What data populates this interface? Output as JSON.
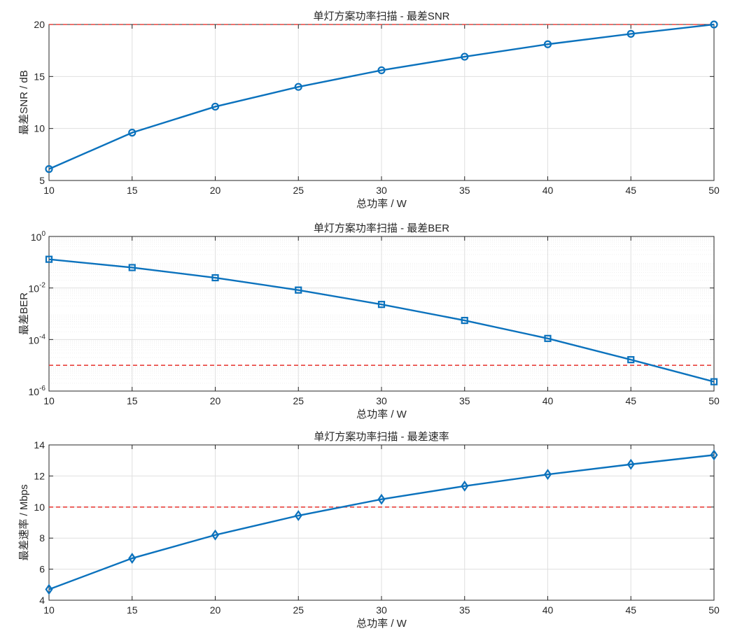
{
  "chart_data": [
    {
      "type": "line",
      "title": "单灯方案功率扫描 - 最差SNR",
      "xlabel": "总功率 / W",
      "ylabel": "最差SNR / dB",
      "xlim": [
        10,
        50
      ],
      "ylim": [
        5,
        20
      ],
      "xticks": [
        10,
        15,
        20,
        25,
        30,
        35,
        40,
        45,
        50
      ],
      "yticks": [
        5,
        10,
        15,
        20
      ],
      "yscale": "linear",
      "grid": true,
      "marker": "circle",
      "color": "#0b72bd",
      "threshold": 20,
      "threshold_color": "#e8413c",
      "x": [
        10,
        15,
        20,
        25,
        30,
        35,
        40,
        45,
        50
      ],
      "y": [
        6.1,
        9.6,
        12.1,
        14.0,
        15.6,
        16.9,
        18.1,
        19.1,
        20.0
      ]
    },
    {
      "type": "line",
      "title": "单灯方案功率扫描 - 最差BER",
      "xlabel": "总功率 / W",
      "ylabel": "最差BER",
      "xlim": [
        10,
        50
      ],
      "ylim": [
        1e-06,
        1
      ],
      "xticks": [
        10,
        15,
        20,
        25,
        30,
        35,
        40,
        45,
        50
      ],
      "yticks": [
        1e-06,
        0.0001,
        0.01,
        1
      ],
      "ytick_labels": [
        {
          "base": "10",
          "exp": "-6"
        },
        {
          "base": "10",
          "exp": "-4"
        },
        {
          "base": "10",
          "exp": "-2"
        },
        {
          "base": "10",
          "exp": "0"
        }
      ],
      "yscale": "log",
      "grid": true,
      "marker": "square",
      "color": "#0b72bd",
      "threshold": 1e-05,
      "threshold_color": "#e8413c",
      "x": [
        10,
        15,
        20,
        25,
        30,
        35,
        40,
        45,
        50
      ],
      "y": [
        0.13,
        0.062,
        0.025,
        0.0083,
        0.0023,
        0.00055,
        0.00011,
        1.65e-05,
        2.3e-06
      ]
    },
    {
      "type": "line",
      "title": "单灯方案功率扫描 - 最差速率",
      "xlabel": "总功率 / W",
      "ylabel": "最差速率 / Mbps",
      "xlim": [
        10,
        50
      ],
      "ylim": [
        4,
        14
      ],
      "xticks": [
        10,
        15,
        20,
        25,
        30,
        35,
        40,
        45,
        50
      ],
      "yticks": [
        4,
        6,
        8,
        10,
        12,
        14
      ],
      "yscale": "linear",
      "grid": true,
      "marker": "diamond",
      "color": "#0b72bd",
      "threshold": 10,
      "threshold_color": "#e8413c",
      "x": [
        10,
        15,
        20,
        25,
        30,
        35,
        40,
        45,
        50
      ],
      "y": [
        4.7,
        6.7,
        8.2,
        9.45,
        10.5,
        11.35,
        12.1,
        12.75,
        13.35
      ]
    }
  ]
}
